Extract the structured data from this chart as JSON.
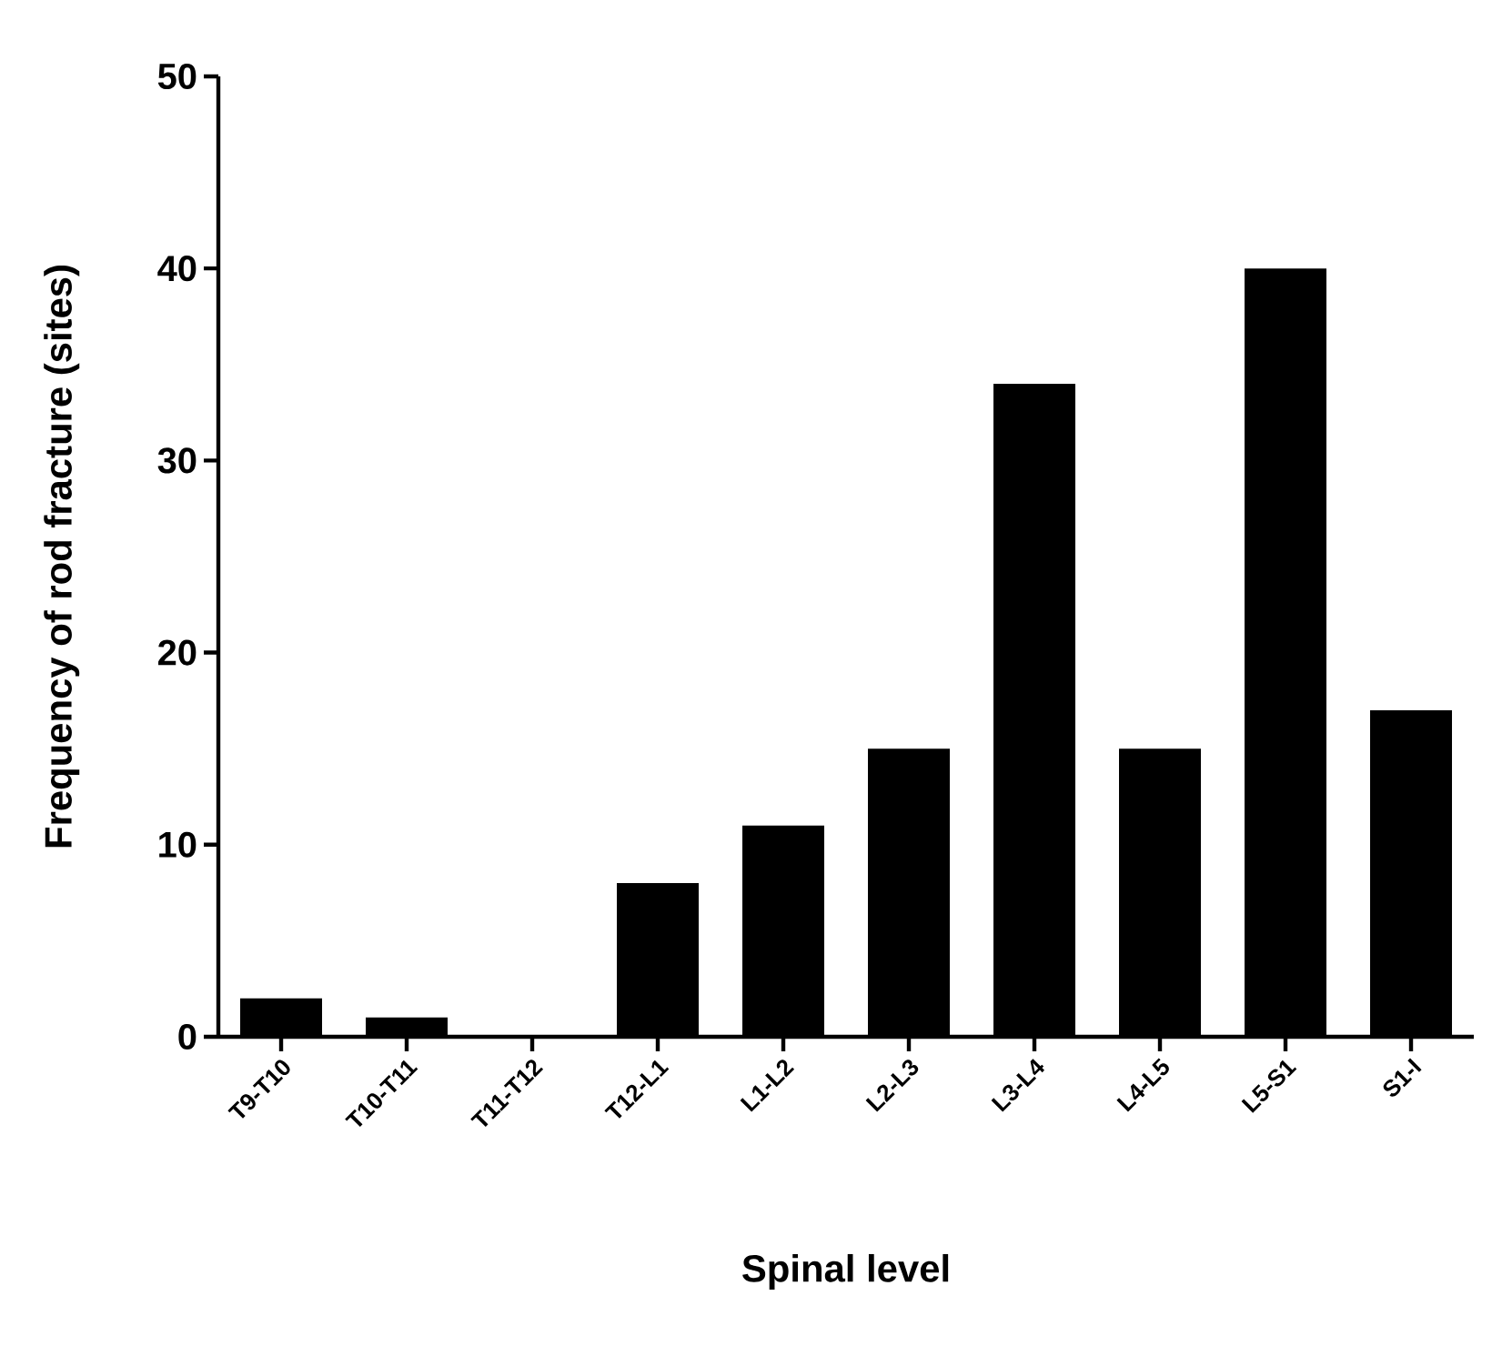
{
  "chart_data": {
    "type": "bar",
    "xlabel": "Spinal level",
    "ylabel": "Frequency of rod fracture (sites)",
    "categories": [
      "T9-T10",
      "T10-T11",
      "T11-T12",
      "T12-L1",
      "L1-L2",
      "L2-L3",
      "L3-L4",
      "L4-L5",
      "L5-S1",
      "S1-I"
    ],
    "values": [
      2,
      1,
      0,
      8,
      11,
      15,
      34,
      15,
      40,
      17
    ],
    "color": "#000000",
    "ylim": [
      0,
      50
    ],
    "yticks": [
      0,
      10,
      20,
      30,
      40,
      50
    ],
    "grid": false
  }
}
